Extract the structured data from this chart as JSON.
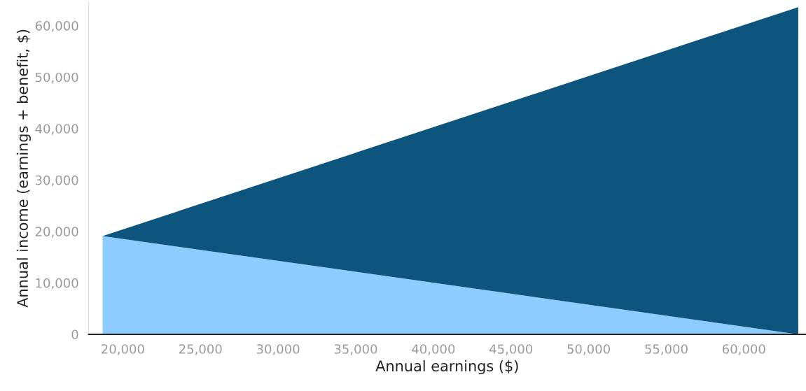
{
  "chart_data": {
    "type": "area",
    "stacked": true,
    "xlabel": "Annual earnings ($)",
    "ylabel": "Annual income (earnings + benefit, $)",
    "x": [
      18700,
      63500
    ],
    "series": [
      {
        "color": "#8ecbff",
        "values": [
          19100,
          0
        ]
      },
      {
        "color": "#0e557e",
        "values": [
          0,
          63600
        ]
      }
    ],
    "xlim": [
      17800,
      64000
    ],
    "ylim": [
      0,
      64600
    ],
    "xticks": [
      {
        "value": 20000,
        "label": "20,000"
      },
      {
        "value": 25000,
        "label": "25,000"
      },
      {
        "value": 30000,
        "label": "30,000"
      },
      {
        "value": 35000,
        "label": "35,000"
      },
      {
        "value": 40000,
        "label": "40,000"
      },
      {
        "value": 45000,
        "label": "45,000"
      },
      {
        "value": 50000,
        "label": "50,000"
      },
      {
        "value": 55000,
        "label": "55,000"
      },
      {
        "value": 60000,
        "label": "60,000"
      }
    ],
    "yticks": [
      0,
      {
        "value": 10000,
        "label": "10,000"
      },
      {
        "value": 20000,
        "label": "20,000"
      },
      {
        "value": 30000,
        "label": "30,000"
      },
      {
        "value": 40000,
        "label": "40,000"
      },
      {
        "value": 50000,
        "label": "50,000"
      },
      {
        "value": 60000,
        "label": "60,000"
      }
    ]
  }
}
